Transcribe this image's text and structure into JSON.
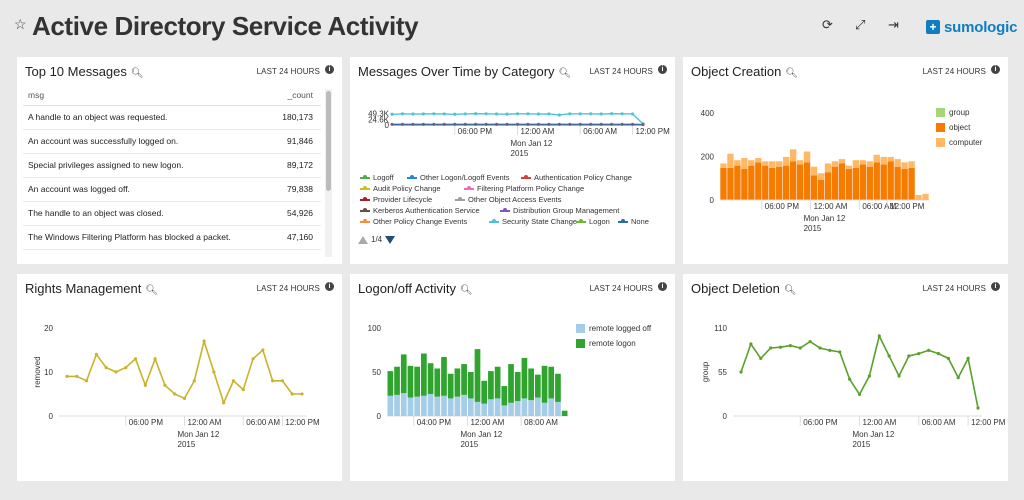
{
  "header": {
    "title": "Active Directory Service Activity",
    "logo_text": "sumologic",
    "logo_mark": "+",
    "icons": [
      "star-icon",
      "refresh-icon",
      "fullscreen-icon",
      "share-icon"
    ]
  },
  "time_label": "LAST 24 HOURS",
  "panels": {
    "top_messages": {
      "title": "Top 10 Messages",
      "col_msg": "msg",
      "col_count": "_count",
      "rows": [
        {
          "msg": "A handle to an object was requested.",
          "count": "180,173"
        },
        {
          "msg": "An account was successfully logged on.",
          "count": "91,846"
        },
        {
          "msg": "Special privileges assigned to new logon.",
          "count": "89,172"
        },
        {
          "msg": "An account was logged off.",
          "count": "79,838"
        },
        {
          "msg": "The handle to an object was closed.",
          "count": "54,926"
        },
        {
          "msg": "The Windows Filtering Platform has blocked a packet.",
          "count": "47,160"
        }
      ]
    },
    "messages_over_time": {
      "title": "Messages Over Time by Category",
      "pager": "1/4"
    },
    "object_creation": {
      "title": "Object Creation"
    },
    "rights_management": {
      "title": "Rights Management"
    },
    "logon_activity": {
      "title": "Logon/off Activity"
    },
    "object_deletion": {
      "title": "Object Deletion"
    }
  },
  "chart_data": [
    {
      "id": "messages_over_time",
      "type": "line",
      "ytick_labels": [
        "49.3K",
        "24.6K",
        "0"
      ],
      "yticks": [
        49300,
        24600,
        0
      ],
      "ylim": [
        0,
        60000
      ],
      "xlim": [
        0,
        24
      ],
      "xticks": [
        {
          "x": 6,
          "label": "06:00 PM"
        },
        {
          "x": 12,
          "label": "12:00 AM",
          "sub1": "Mon Jan 12",
          "sub2": "2015"
        },
        {
          "x": 18,
          "label": "06:00 AM"
        },
        {
          "x": 23,
          "label": "12:00 PM"
        }
      ],
      "legend": [
        {
          "name": "Logoff",
          "color": "#4caf50"
        },
        {
          "name": "Other Logon/Logoff Events",
          "color": "#1e88e5"
        },
        {
          "name": "Authentication Policy Change",
          "color": "#e53935"
        },
        {
          "name": "Audit Policy Change",
          "color": "#c9c31c"
        },
        {
          "name": "Filtering Platform Policy Change",
          "color": "#f06ac2"
        },
        {
          "name": "Provider Lifecycle",
          "color": "#b71c1c"
        },
        {
          "name": "Other Object Access Events",
          "color": "#9e9e9e"
        },
        {
          "name": "Kerberos Authentication Service",
          "color": "#6d4c41"
        },
        {
          "name": "Distribution Group Management",
          "color": "#7e57c2"
        },
        {
          "name": "Other Policy Change Events",
          "color": "#ff8a3c"
        },
        {
          "name": "Security State Change",
          "color": "#4fc3d7"
        },
        {
          "name": "Logon",
          "color": "#66bb33"
        },
        {
          "name": "None",
          "color": "#2e6da4"
        }
      ],
      "series": [
        {
          "name": "Security State Change",
          "color": "#4fc3d7",
          "x": [
            0,
            1,
            2,
            3,
            4,
            5,
            6,
            7,
            8,
            9,
            10,
            11,
            12,
            13,
            14,
            15,
            16,
            17,
            18,
            19,
            20,
            21,
            22,
            23,
            24
          ],
          "values": [
            46000,
            48000,
            47000,
            47500,
            48000,
            47500,
            46000,
            47500,
            48500,
            48000,
            47000,
            46500,
            48000,
            48000,
            47000,
            47500,
            43000,
            48000,
            48000,
            48000,
            47000,
            48500,
            48000,
            47500,
            5000
          ]
        },
        {
          "name": "Authentication Policy Change",
          "color": "#e53935",
          "x": [
            0,
            1,
            2,
            3,
            4,
            5,
            6,
            7,
            8,
            9,
            10,
            11,
            12,
            13,
            14,
            15,
            16,
            17,
            18,
            19,
            20,
            21,
            22,
            23,
            24
          ],
          "values": [
            3000,
            3000,
            3000,
            3000,
            3000,
            3000,
            3000,
            3000,
            3000,
            3000,
            3000,
            3000,
            3000,
            3000,
            3000,
            3000,
            3000,
            3000,
            3000,
            3000,
            3000,
            3000,
            3000,
            3000,
            2000
          ]
        },
        {
          "name": "None",
          "color": "#2e6da4",
          "x": [
            0,
            24
          ],
          "values": [
            800,
            800
          ]
        }
      ]
    },
    {
      "id": "object_creation",
      "type": "bar",
      "stacked": true,
      "ylim": [
        0,
        400
      ],
      "yticks": [
        0,
        200,
        400
      ],
      "xticks": [
        {
          "i": 6,
          "label": "06:00 PM"
        },
        {
          "i": 13,
          "label": "12:00 AM",
          "sub1": "Mon Jan 12",
          "sub2": "2015"
        },
        {
          "i": 20,
          "label": "06:00 AM"
        },
        {
          "i": 24,
          "label": "12:00 PM"
        }
      ],
      "series": [
        {
          "name": "group",
          "color": "#a5d67a",
          "values": [
            3,
            3,
            3,
            3,
            3,
            3,
            3,
            3,
            3,
            3,
            3,
            3,
            3,
            3,
            3,
            3,
            3,
            3,
            3,
            3,
            3,
            3,
            3,
            3,
            3,
            3,
            3,
            3,
            3,
            3
          ]
        },
        {
          "name": "object",
          "color": "#f57c00",
          "values": [
            145,
            145,
            155,
            140,
            155,
            170,
            155,
            145,
            150,
            155,
            175,
            160,
            170,
            110,
            90,
            125,
            150,
            165,
            140,
            145,
            160,
            150,
            170,
            160,
            175,
            150,
            140,
            145,
            0,
            0
          ]
        },
        {
          "name": "computer",
          "color": "#ffb866",
          "values": [
            20,
            65,
            25,
            50,
            25,
            20,
            20,
            30,
            25,
            40,
            55,
            20,
            50,
            40,
            30,
            40,
            25,
            20,
            15,
            35,
            20,
            25,
            35,
            35,
            20,
            35,
            30,
            30,
            20,
            25
          ]
        }
      ]
    },
    {
      "id": "rights_management",
      "type": "line",
      "ylabel": "removed",
      "ylim": [
        0,
        20
      ],
      "yticks": [
        0,
        10,
        20
      ],
      "xticks": [
        {
          "x": 6,
          "label": "06:00 PM"
        },
        {
          "x": 12,
          "label": "12:00 AM",
          "sub1": "Mon Jan 12",
          "sub2": "2015"
        },
        {
          "x": 18,
          "label": "06:00 AM"
        },
        {
          "x": 22,
          "label": "12:00 PM"
        }
      ],
      "xlim": [
        0,
        24
      ],
      "series": [
        {
          "name": "removed",
          "color": "#c9b32c",
          "x": [
            0,
            1,
            2,
            3,
            4,
            5,
            6,
            7,
            8,
            9,
            10,
            11,
            12,
            13,
            14,
            15,
            16,
            17,
            18,
            19,
            20,
            21,
            22,
            23,
            24
          ],
          "values": [
            9,
            9,
            8,
            14,
            11,
            10,
            11,
            13,
            7,
            13,
            7,
            5,
            4,
            8,
            17,
            10,
            3,
            8,
            6,
            13,
            15,
            8,
            8,
            5,
            5
          ]
        }
      ]
    },
    {
      "id": "logon_activity",
      "type": "bar",
      "stacked": true,
      "ylim": [
        0,
        100
      ],
      "yticks": [
        0,
        50,
        100
      ],
      "xticks": [
        {
          "i": 4,
          "label": "04:00 PM"
        },
        {
          "i": 12,
          "label": "12:00 AM",
          "sub1": "Mon Jan 12",
          "sub2": "2015"
        },
        {
          "i": 20,
          "label": "08:00 AM"
        }
      ],
      "series": [
        {
          "name": "remote logged off",
          "color": "#a6cde8",
          "values": [
            23,
            24,
            26,
            21,
            22,
            23,
            25,
            22,
            23,
            20,
            22,
            24,
            20,
            16,
            14,
            19,
            20,
            12,
            15,
            17,
            20,
            18,
            21,
            15,
            20,
            16,
            0
          ]
        },
        {
          "name": "remote logon",
          "color": "#2fa52f",
          "values": [
            28,
            32,
            44,
            36,
            34,
            48,
            35,
            32,
            44,
            28,
            32,
            35,
            30,
            60,
            26,
            32,
            36,
            22,
            44,
            33,
            46,
            36,
            26,
            42,
            36,
            32,
            6
          ]
        }
      ]
    },
    {
      "id": "object_deletion",
      "type": "line",
      "ylabel": "group",
      "ylim": [
        0,
        110
      ],
      "yticks": [
        0,
        55,
        110
      ],
      "xticks": [
        {
          "x": 6,
          "label": "06:00 PM"
        },
        {
          "x": 12,
          "label": "12:00 AM",
          "sub1": "Mon Jan 12",
          "sub2": "2015"
        },
        {
          "x": 18,
          "label": "06:00 AM"
        },
        {
          "x": 23,
          "label": "12:00 PM"
        }
      ],
      "xlim": [
        0,
        24
      ],
      "series": [
        {
          "name": "group",
          "color": "#5aa02c",
          "x": [
            0,
            1,
            2,
            3,
            4,
            5,
            6,
            7,
            8,
            9,
            10,
            11,
            12,
            13,
            14,
            15,
            16,
            17,
            18,
            19,
            20,
            21,
            22,
            23,
            24
          ],
          "values": [
            55,
            90,
            72,
            85,
            86,
            88,
            85,
            93,
            85,
            82,
            80,
            46,
            27,
            50,
            100,
            75,
            50,
            75,
            78,
            82,
            78,
            72,
            48,
            72,
            10
          ]
        }
      ]
    }
  ]
}
